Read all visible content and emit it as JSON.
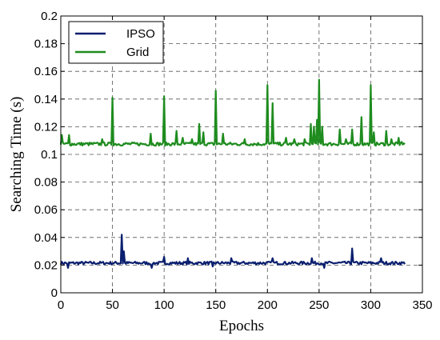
{
  "chart_data": {
    "type": "line",
    "xlabel": "Epochs",
    "ylabel": "Searching Time (s)",
    "xlim": [
      0,
      350
    ],
    "ylim": [
      0,
      0.2
    ],
    "xticks": [
      0,
      50,
      100,
      150,
      200,
      250,
      300,
      350
    ],
    "yticks": [
      0,
      0.02,
      0.04,
      0.06,
      0.08,
      0.1,
      0.12,
      0.14,
      0.16,
      0.18,
      0.2
    ],
    "grid": true,
    "legend_position": "top-left",
    "series": [
      {
        "name": "IPSO",
        "color": "#0a1f6e",
        "baseline": 0.0215,
        "noise": 0.0011,
        "x_range": [
          0,
          333
        ],
        "spikes": [
          {
            "x": 59,
            "y": 0.042
          },
          {
            "x": 61,
            "y": 0.03
          },
          {
            "x": 100,
            "y": 0.026
          },
          {
            "x": 123,
            "y": 0.025
          },
          {
            "x": 165,
            "y": 0.025
          },
          {
            "x": 205,
            "y": 0.025
          },
          {
            "x": 243,
            "y": 0.025
          },
          {
            "x": 282,
            "y": 0.032
          },
          {
            "x": 310,
            "y": 0.025
          },
          {
            "x": 7,
            "y": 0.018
          },
          {
            "x": 88,
            "y": 0.018
          },
          {
            "x": 147,
            "y": 0.019
          },
          {
            "x": 255,
            "y": 0.018
          }
        ]
      },
      {
        "name": "Grid",
        "color": "#1e8c1e",
        "baseline": 0.1075,
        "noise": 0.0012,
        "x_range": [
          0,
          333
        ],
        "spikes": [
          {
            "x": 1,
            "y": 0.114
          },
          {
            "x": 8,
            "y": 0.114
          },
          {
            "x": 40,
            "y": 0.111
          },
          {
            "x": 50,
            "y": 0.141
          },
          {
            "x": 87,
            "y": 0.115
          },
          {
            "x": 100,
            "y": 0.142
          },
          {
            "x": 112,
            "y": 0.117
          },
          {
            "x": 118,
            "y": 0.112
          },
          {
            "x": 127,
            "y": 0.111
          },
          {
            "x": 134,
            "y": 0.122
          },
          {
            "x": 138,
            "y": 0.116
          },
          {
            "x": 150,
            "y": 0.146
          },
          {
            "x": 157,
            "y": 0.115
          },
          {
            "x": 178,
            "y": 0.111
          },
          {
            "x": 200,
            "y": 0.15
          },
          {
            "x": 205,
            "y": 0.137
          },
          {
            "x": 218,
            "y": 0.112
          },
          {
            "x": 226,
            "y": 0.111
          },
          {
            "x": 236,
            "y": 0.111
          },
          {
            "x": 242,
            "y": 0.122
          },
          {
            "x": 245,
            "y": 0.12
          },
          {
            "x": 248,
            "y": 0.125
          },
          {
            "x": 250,
            "y": 0.154
          },
          {
            "x": 253,
            "y": 0.12
          },
          {
            "x": 270,
            "y": 0.118
          },
          {
            "x": 276,
            "y": 0.111
          },
          {
            "x": 282,
            "y": 0.118
          },
          {
            "x": 291,
            "y": 0.127
          },
          {
            "x": 300,
            "y": 0.15
          },
          {
            "x": 303,
            "y": 0.116
          },
          {
            "x": 315,
            "y": 0.117
          },
          {
            "x": 320,
            "y": 0.111
          },
          {
            "x": 327,
            "y": 0.112
          },
          {
            "x": 330,
            "y": 0.109
          }
        ]
      }
    ]
  }
}
